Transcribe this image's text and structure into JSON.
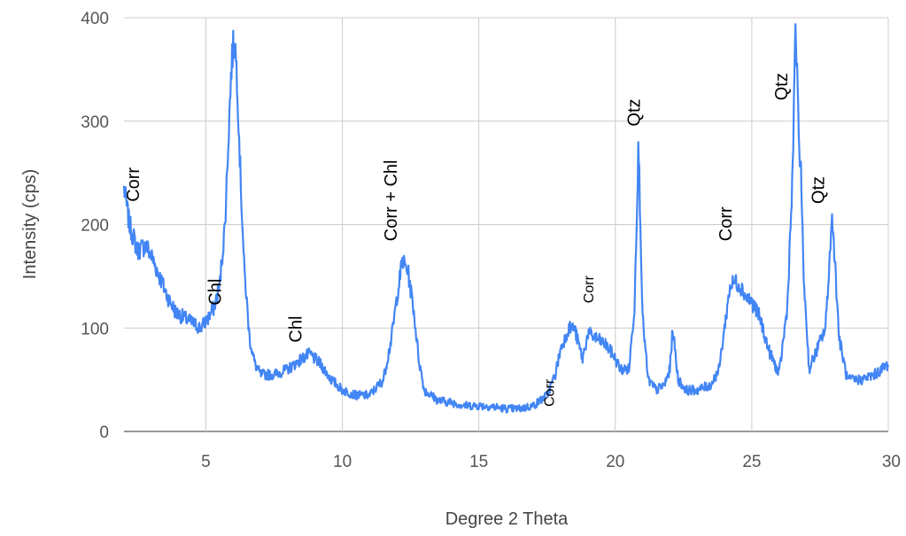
{
  "chart_data": {
    "type": "line",
    "xlabel": "Degree 2 Theta",
    "ylabel": "Intensity (cps)",
    "xlim": [
      2,
      30
    ],
    "ylim": [
      0,
      400
    ],
    "x_ticks": [
      5,
      10,
      15,
      20,
      25,
      30
    ],
    "y_ticks": [
      0,
      100,
      200,
      300,
      400
    ],
    "grid": true,
    "legend": "none",
    "series_color": "#4285f4",
    "series": [
      {
        "x": [
          2.0,
          2.2,
          2.5,
          2.8,
          3.0,
          3.3,
          3.6,
          3.9,
          4.2,
          4.5,
          4.8,
          5.1,
          5.3,
          5.5,
          5.7,
          5.85,
          5.95,
          6.05,
          6.15,
          6.25,
          6.4,
          6.6,
          6.8,
          7.0,
          7.5,
          8.0,
          8.5,
          8.8,
          9.2,
          9.6,
          10.0,
          10.5,
          11.0,
          11.5,
          11.8,
          12.0,
          12.2,
          12.4,
          12.6,
          12.8,
          13.0,
          13.5,
          14.0,
          14.5,
          15.0,
          15.5,
          16.0,
          16.5,
          17.0,
          17.5,
          17.8,
          18.0,
          18.3,
          18.5,
          18.8,
          19.0,
          19.3,
          19.6,
          19.9,
          20.2,
          20.5,
          20.7,
          20.85,
          21.0,
          21.2,
          21.5,
          21.8,
          22.0,
          22.1,
          22.3,
          22.6,
          23.0,
          23.5,
          23.8,
          24.0,
          24.2,
          24.4,
          24.6,
          24.8,
          25.0,
          25.3,
          25.6,
          26.0,
          26.3,
          26.5,
          26.6,
          26.7,
          26.8,
          26.9,
          27.1,
          27.4,
          27.7,
          27.95,
          28.2,
          28.5,
          29.0,
          29.5,
          30.0
        ],
        "values": [
          235,
          200,
          175,
          180,
          170,
          150,
          130,
          115,
          110,
          105,
          100,
          110,
          120,
          140,
          200,
          300,
          360,
          380,
          340,
          260,
          160,
          90,
          65,
          55,
          55,
          60,
          70,
          75,
          65,
          50,
          40,
          35,
          35,
          50,
          90,
          130,
          165,
          155,
          120,
          70,
          40,
          30,
          28,
          25,
          25,
          24,
          22,
          22,
          25,
          35,
          55,
          80,
          100,
          100,
          70,
          95,
          90,
          85,
          75,
          60,
          60,
          120,
          280,
          110,
          50,
          40,
          45,
          60,
          100,
          50,
          40,
          40,
          45,
          60,
          100,
          140,
          145,
          140,
          130,
          125,
          110,
          80,
          55,
          120,
          250,
          400,
          300,
          250,
          150,
          60,
          80,
          100,
          210,
          90,
          50,
          50,
          55,
          65
        ]
      }
    ],
    "annotations": [
      {
        "text": "Corr",
        "x": 2.55,
        "y": 222,
        "size": 20
      },
      {
        "text": "Chl",
        "x": 5.55,
        "y": 122,
        "size": 20
      },
      {
        "text": "Chl",
        "x": 8.5,
        "y": 86,
        "size": 20
      },
      {
        "text": "Corr + Chl",
        "x": 12.0,
        "y": 184,
        "size": 20
      },
      {
        "text": "Corr",
        "x": 17.75,
        "y": 24,
        "size": 16
      },
      {
        "text": "Corr",
        "x": 19.2,
        "y": 124,
        "size": 16
      },
      {
        "text": "Qtz",
        "x": 20.9,
        "y": 295,
        "size": 20
      },
      {
        "text": "Corr",
        "x": 24.25,
        "y": 184,
        "size": 20
      },
      {
        "text": "Qtz",
        "x": 26.3,
        "y": 320,
        "size": 20
      },
      {
        "text": "Qtz",
        "x": 27.65,
        "y": 220,
        "size": 20
      }
    ]
  }
}
